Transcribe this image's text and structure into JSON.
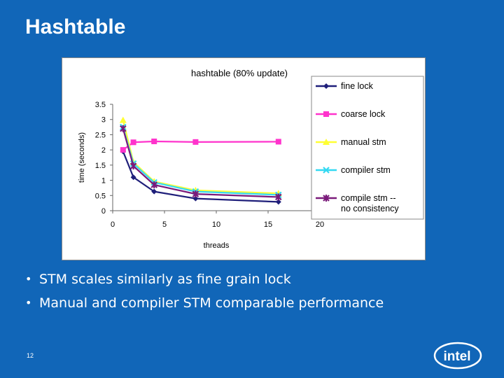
{
  "slide": {
    "title": "Hashtable",
    "bullets": [
      "STM scales similarly as fine grain lock",
      "Manual and compiler STM comparable performance"
    ],
    "page_number": "12",
    "logo_text": "intel"
  },
  "colors": {
    "background": "#1166b8",
    "fine_lock": "#1f1f7a",
    "coarse_lock": "#ff33cc",
    "manual_stm": "#ffff33",
    "compiler_stm": "#33d9f2",
    "compile_stm_nc": "#7a1a7a"
  },
  "chart_data": {
    "type": "line",
    "title": "hashtable (80% update)",
    "xlabel": "threads",
    "ylabel": "time (seconds)",
    "xlim": [
      0,
      20
    ],
    "ylim": [
      0,
      3.5
    ],
    "x_ticks": [
      "0",
      "5",
      "10",
      "15",
      "20"
    ],
    "y_ticks": [
      "0",
      "0.5",
      "1",
      "1.5",
      "2",
      "2.5",
      "3",
      "3.5"
    ],
    "legend_position": "right",
    "series": [
      {
        "name": "fine lock",
        "marker": "diamond",
        "color_key": "fine_lock",
        "x": [
          1,
          2,
          4,
          8,
          16
        ],
        "y": [
          1.95,
          1.1,
          0.63,
          0.4,
          0.29
        ]
      },
      {
        "name": "coarse lock",
        "marker": "square",
        "color_key": "coarse_lock",
        "x": [
          1,
          2,
          4,
          8,
          16
        ],
        "y": [
          2.0,
          2.25,
          2.28,
          2.26,
          2.27
        ]
      },
      {
        "name": "manual stm",
        "marker": "triangle",
        "color_key": "manual_stm",
        "x": [
          1,
          2,
          4,
          8,
          16
        ],
        "y": [
          2.98,
          1.6,
          0.96,
          0.67,
          0.57
        ]
      },
      {
        "name": "compiler stm",
        "marker": "x",
        "color_key": "compiler_stm",
        "x": [
          1,
          2,
          4,
          8,
          16
        ],
        "y": [
          2.75,
          1.55,
          0.93,
          0.63,
          0.52
        ]
      },
      {
        "name": "compile stm -- no consistency",
        "marker": "star",
        "color_key": "compile_stm_nc",
        "x": [
          1,
          2,
          4,
          8,
          16
        ],
        "y": [
          2.7,
          1.47,
          0.85,
          0.55,
          0.45
        ]
      }
    ]
  }
}
